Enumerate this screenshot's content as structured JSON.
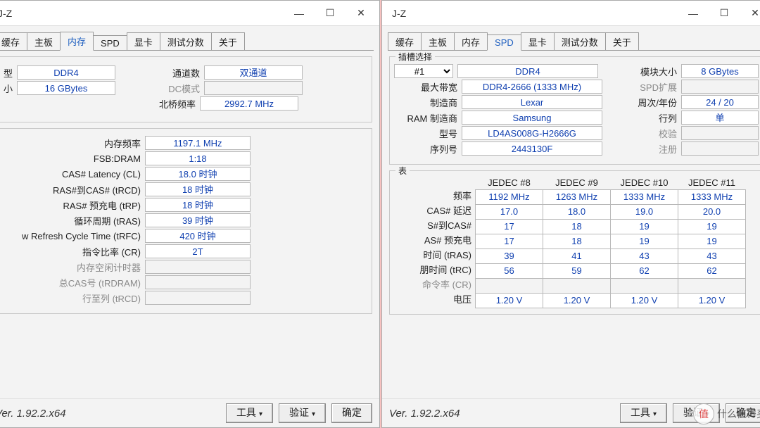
{
  "bg_colors_left": [
    "#f4bfc1",
    "#e7b1a6",
    "#fae6c2",
    "#f2efcf",
    "#b7d9c2",
    "#9fd0c8",
    "#a9cde2",
    "#cfbfe0"
  ],
  "bg_colors_right": [
    "#f7c1bf",
    "#f9d7a9",
    "#f4f0bc",
    "#c7e2c2",
    "#9bd7c8",
    "#9ec8e6",
    "#bdb6e0",
    "#e3bde0"
  ],
  "title_fragment": "J-Z",
  "tabs": [
    "缓存",
    "主板",
    "内存",
    "SPD",
    "显卡",
    "测试分数",
    "关于"
  ],
  "left_active_tab": "内存",
  "right_active_tab": "SPD",
  "left": {
    "group1": {
      "r1": {
        "l1": "型",
        "v1": "DDR4",
        "l2": "通道数",
        "v2": "双通道"
      },
      "r2": {
        "l1": "小",
        "v1": "16 GBytes",
        "l2": "DC模式",
        "v2": ""
      },
      "r3": {
        "l2": "北桥频率",
        "v2": "2992.7 MHz"
      }
    },
    "timings": [
      {
        "label": "内存频率",
        "value": "1197.1 MHz"
      },
      {
        "label": "FSB:DRAM",
        "value": "1:18"
      },
      {
        "label": "CAS# Latency (CL)",
        "value": "18.0 时钟"
      },
      {
        "label": "RAS#到CAS# (tRCD)",
        "value": "18 时钟"
      },
      {
        "label": "RAS# 预充电 (tRP)",
        "value": "18 时钟"
      },
      {
        "label": "循环周期 (tRAS)",
        "value": "39 时钟"
      },
      {
        "label": "w Refresh Cycle Time (tRFC)",
        "value": "420 时钟"
      },
      {
        "label": "指令比率 (CR)",
        "value": "2T"
      },
      {
        "label": "内存空闲计时器",
        "value": "",
        "grey": true
      },
      {
        "label": "总CAS号 (tRDRAM)",
        "value": "",
        "grey": true
      },
      {
        "label": "行至列 (tRCD)",
        "value": "",
        "grey": true
      }
    ]
  },
  "right": {
    "slot_legend": "插槽选择",
    "slot": "#1",
    "rows_left": [
      {
        "label": "",
        "value": "DDR4",
        "noLabel": true
      },
      {
        "label": "最大带宽",
        "value": "DDR4-2666 (1333 MHz)"
      },
      {
        "label": "制造商",
        "value": "Lexar"
      },
      {
        "label": "RAM 制造商",
        "value": "Samsung"
      },
      {
        "label": "型号",
        "value": "LD4AS008G-H2666G"
      },
      {
        "label": "序列号",
        "value": "2443130F"
      }
    ],
    "rows_right": [
      {
        "label": "模块大小",
        "value": "8 GBytes"
      },
      {
        "label": "SPD扩展",
        "value": "",
        "grey": true
      },
      {
        "label": "周次/年份",
        "value": "24 / 20"
      },
      {
        "label": "行列",
        "value": "单"
      },
      {
        "label": "校验",
        "value": "",
        "grey": true
      },
      {
        "label": "注册",
        "value": "",
        "grey": true
      }
    ],
    "jedec_legend": "表",
    "jedec_headers": [
      "JEDEC #8",
      "JEDEC #9",
      "JEDEC #10",
      "JEDEC #11"
    ],
    "jedec_rows": [
      {
        "label": "频率",
        "cells": [
          "1192 MHz",
          "1263 MHz",
          "1333 MHz",
          "1333 MHz"
        ]
      },
      {
        "label": "CAS# 延迟",
        "cells": [
          "17.0",
          "18.0",
          "19.0",
          "20.0"
        ]
      },
      {
        "label": "S#到CAS#",
        "cells": [
          "17",
          "18",
          "19",
          "19"
        ]
      },
      {
        "label": "AS# 预充电",
        "cells": [
          "17",
          "18",
          "19",
          "19"
        ]
      },
      {
        "label": "时间 (tRAS)",
        "cells": [
          "39",
          "41",
          "43",
          "43"
        ]
      },
      {
        "label": "朋时间 (tRC)",
        "cells": [
          "56",
          "59",
          "62",
          "62"
        ]
      },
      {
        "label": "命令率 (CR)",
        "cells": [
          "",
          "",
          "",
          ""
        ],
        "grey": true
      },
      {
        "label": "电压",
        "cells": [
          "1.20 V",
          "1.20 V",
          "1.20 V",
          "1.20 V"
        ]
      }
    ]
  },
  "footer": {
    "version": "Ver. 1.92.2.x64",
    "tools": "工具",
    "verify": "验证",
    "ok": "确定"
  },
  "watermark": {
    "badge": "值",
    "text": "什么值得买"
  }
}
